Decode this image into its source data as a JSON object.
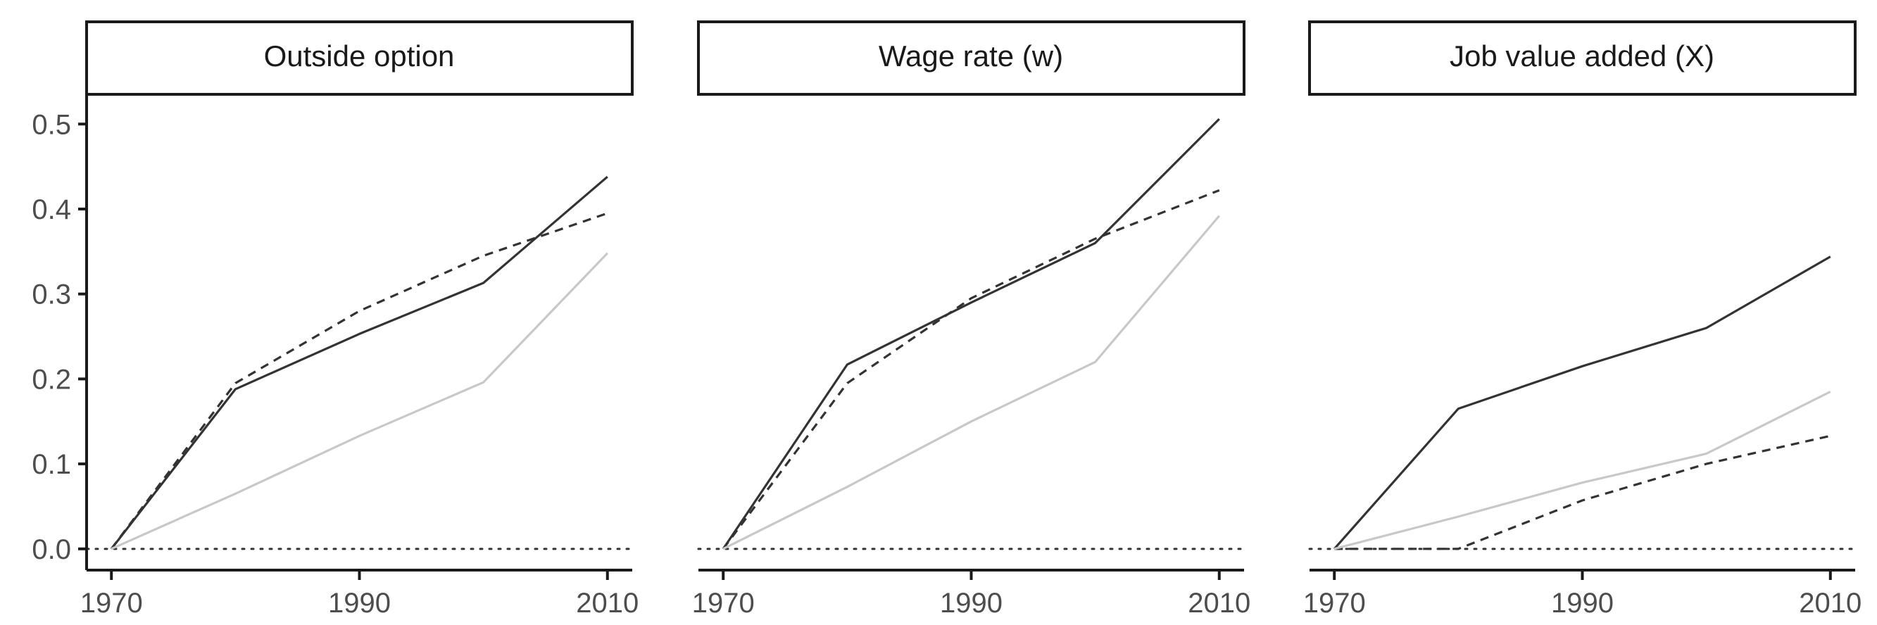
{
  "chart_data": [
    {
      "type": "line",
      "title": "Outside option",
      "x": [
        1970,
        1980,
        1990,
        2000,
        2010
      ],
      "xticks": [
        1970,
        1990,
        2010
      ],
      "yticks": [
        0.0,
        0.1,
        0.2,
        0.3,
        0.4,
        0.5
      ],
      "ytick_labels": [
        "0.0",
        "0.1",
        "0.2",
        "0.3",
        "0.4",
        "0.5"
      ],
      "ylim": [
        -0.025,
        0.535
      ],
      "xlim": [
        1968,
        2012
      ],
      "reference_line": {
        "y": 0,
        "style": "dotted"
      },
      "series": [
        {
          "style": "solid-dark",
          "color": "#333333",
          "values": [
            0.0,
            0.188,
            0.253,
            0.313,
            0.438
          ]
        },
        {
          "style": "dashed-dark",
          "color": "#333333",
          "values": [
            0.0,
            0.195,
            0.28,
            0.345,
            0.395
          ]
        },
        {
          "style": "solid-light",
          "color": "#c8c8c8",
          "values": [
            0.0,
            0.065,
            0.133,
            0.196,
            0.348
          ]
        }
      ]
    },
    {
      "type": "line",
      "title": "Wage rate (w)",
      "x": [
        1970,
        1980,
        1990,
        2000,
        2010
      ],
      "xticks": [
        1970,
        1990,
        2010
      ],
      "ylim": [
        -0.025,
        0.535
      ],
      "xlim": [
        1968,
        2012
      ],
      "reference_line": {
        "y": 0,
        "style": "dotted"
      },
      "series": [
        {
          "style": "solid-dark",
          "color": "#333333",
          "values": [
            0.0,
            0.217,
            0.29,
            0.36,
            0.506
          ]
        },
        {
          "style": "dashed-dark",
          "color": "#333333",
          "values": [
            0.0,
            0.195,
            0.295,
            0.365,
            0.422
          ]
        },
        {
          "style": "solid-light",
          "color": "#c8c8c8",
          "values": [
            0.0,
            0.073,
            0.15,
            0.22,
            0.392
          ]
        }
      ]
    },
    {
      "type": "line",
      "title": "Job value added (X)",
      "x": [
        1970,
        1980,
        1990,
        2000,
        2010
      ],
      "xticks": [
        1970,
        1990,
        2010
      ],
      "ylim": [
        -0.025,
        0.535
      ],
      "xlim": [
        1968,
        2012
      ],
      "reference_line": {
        "y": 0,
        "style": "dotted"
      },
      "series": [
        {
          "style": "solid-dark",
          "color": "#333333",
          "values": [
            0.0,
            0.165,
            0.215,
            0.26,
            0.344
          ]
        },
        {
          "style": "dashed-dark",
          "color": "#333333",
          "values": [
            0.0,
            0.0,
            0.057,
            0.1,
            0.133
          ]
        },
        {
          "style": "solid-light",
          "color": "#c8c8c8",
          "values": [
            0.0,
            0.038,
            0.078,
            0.112,
            0.185
          ]
        }
      ]
    }
  ],
  "colors": {
    "axis": "#1a1a1a",
    "tick_text": "#4d4d4d",
    "strip_border": "#1a1a1a",
    "strip_fill": "#ffffff"
  }
}
